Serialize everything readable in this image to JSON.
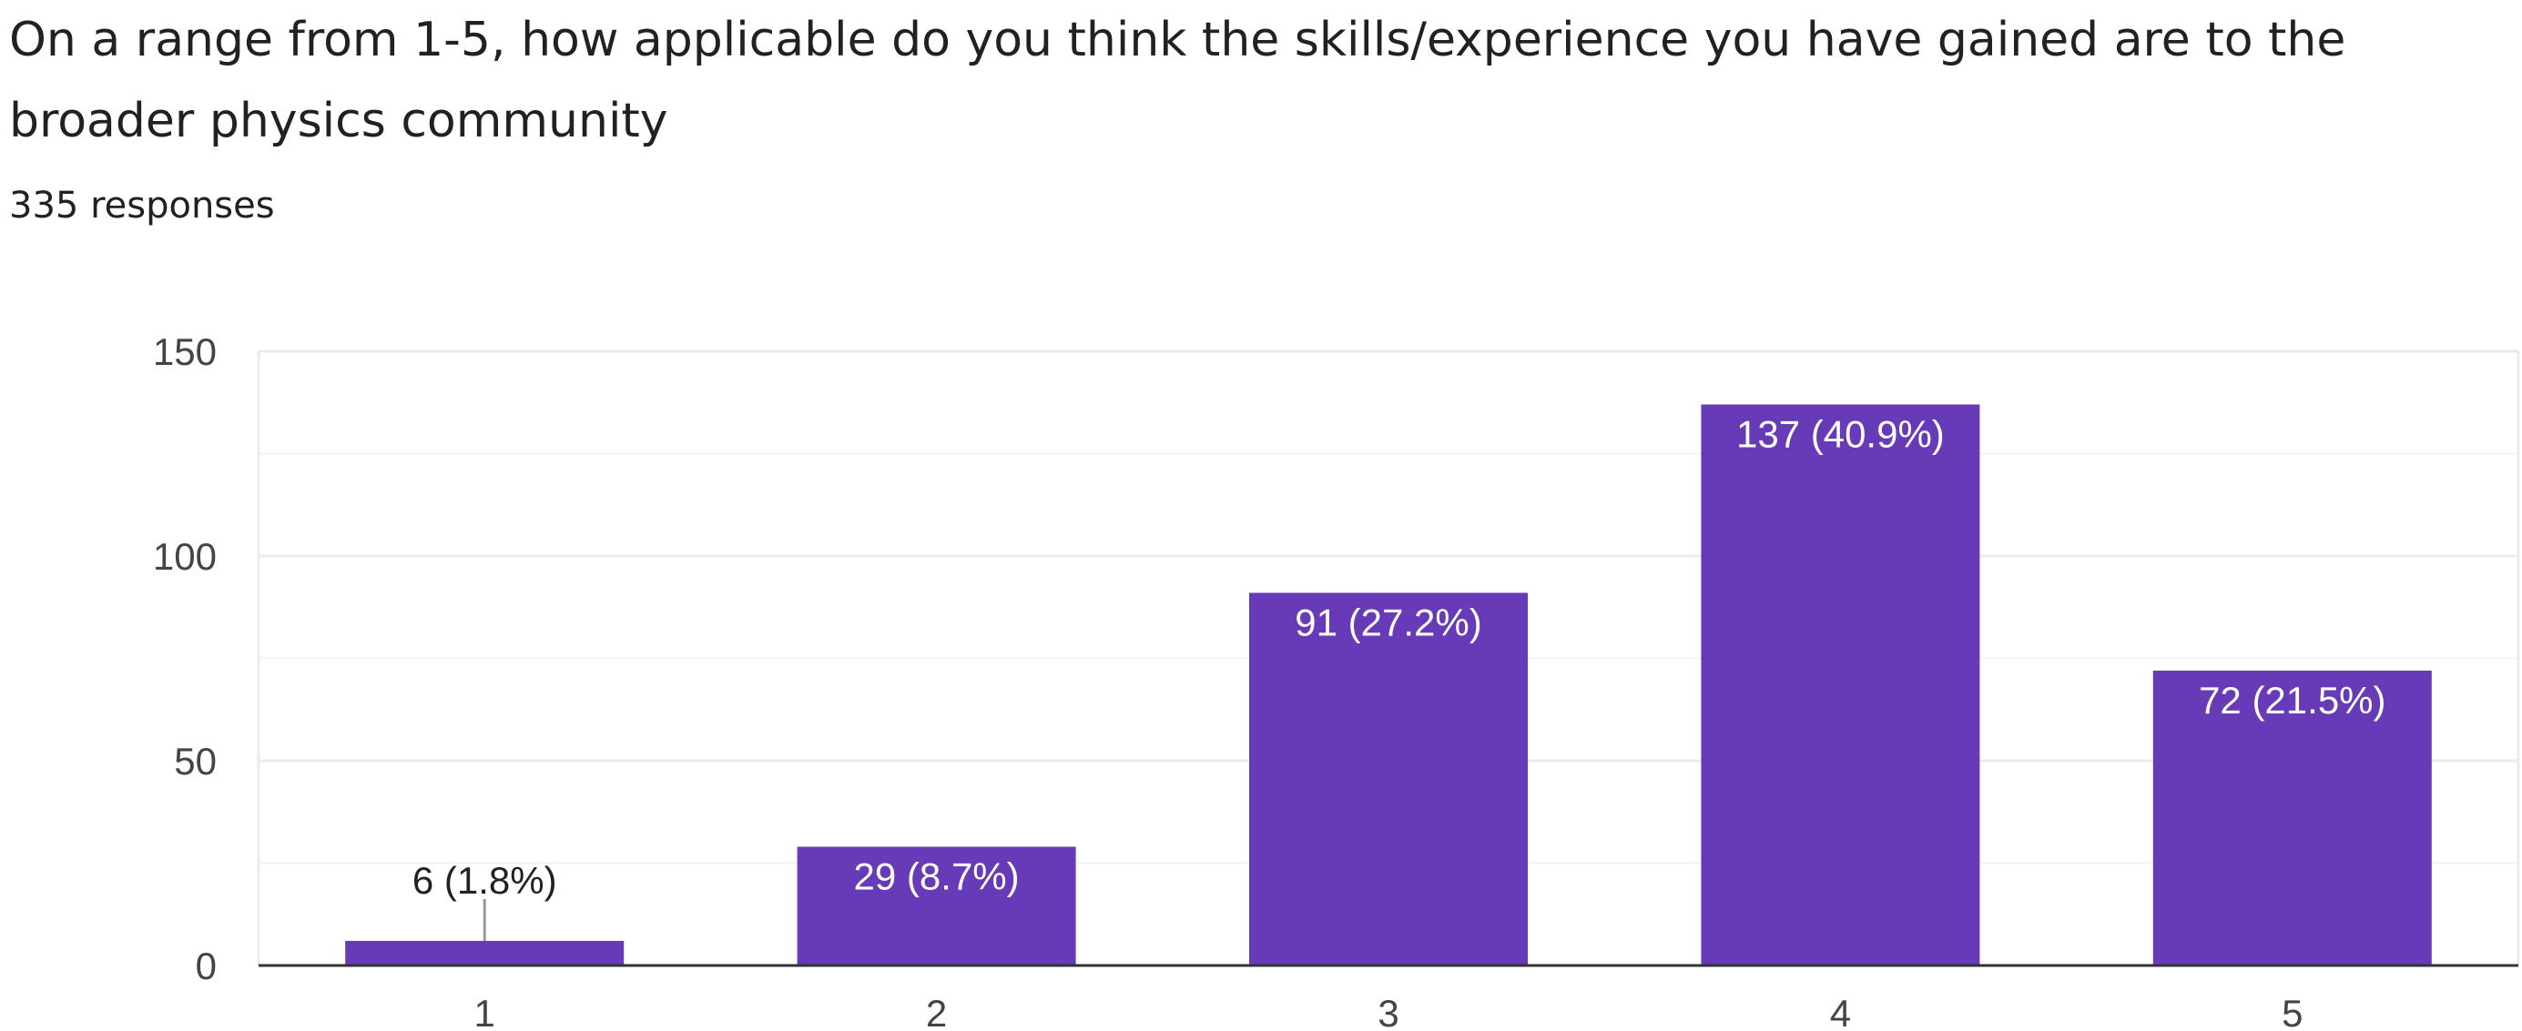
{
  "question": {
    "title": "On a range from 1-5, how applicable do you think the skills/experience you have gained are to the broader physics community",
    "response_count": "335 responses"
  },
  "colors": {
    "bar": "#673ab7",
    "text": "#202124",
    "axis_tick": "#444444",
    "gridline": "#ebebeb",
    "gridline_minor": "#f3f3f3",
    "label_inside": "#ffffff",
    "label_outside": "#202124"
  },
  "chart_data": {
    "type": "bar",
    "categories": [
      "1",
      "2",
      "3",
      "4",
      "5"
    ],
    "values": [
      6,
      29,
      91,
      137,
      72
    ],
    "data_labels": [
      "6 (1.8%)",
      "29 (8.7%)",
      "91 (27.2%)",
      "137 (40.9%)",
      "72 (21.5%)"
    ],
    "title": "",
    "xlabel": "",
    "ylabel": "",
    "ylim": [
      0,
      150
    ],
    "yticks": [
      0,
      50,
      100,
      150
    ],
    "grid": true
  }
}
